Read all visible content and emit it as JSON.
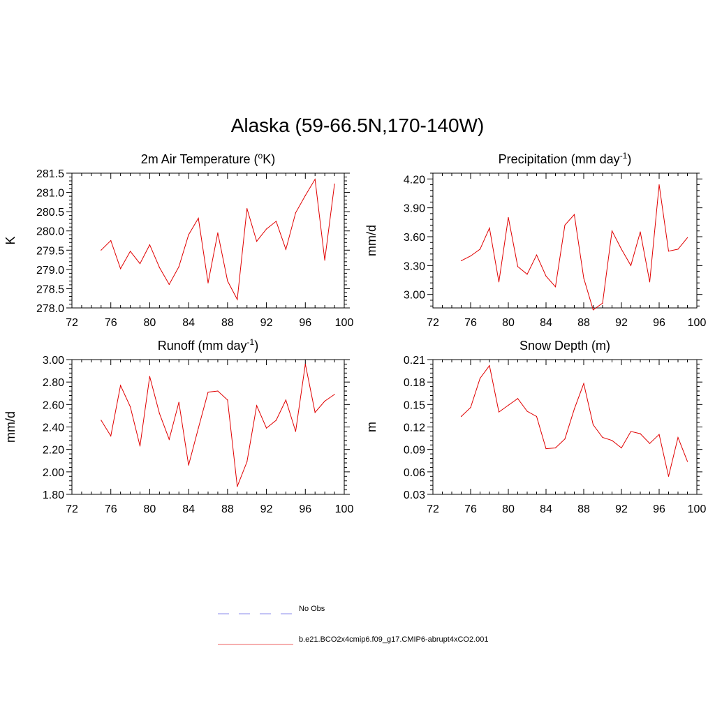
{
  "figure": {
    "title": "Alaska (59-66.5N,170-140W)"
  },
  "legend": {
    "items": [
      {
        "label": "No Obs",
        "color": "#a0a0f0",
        "style": "dashed"
      },
      {
        "label": "b.e21.BCO2x4cmip6.f09_g17.CMIP6-abrupt4xCO2.001",
        "color": "#f08080",
        "style": "solid"
      }
    ]
  },
  "chart_data": [
    {
      "type": "line",
      "title": "2m Air Temperature (",
      "title_sup": "o",
      "title_tail": "K)",
      "ylabel": "K",
      "xlim": [
        72,
        100
      ],
      "ylim": [
        278.0,
        281.5
      ],
      "xticks": [
        72,
        76,
        80,
        84,
        88,
        92,
        96,
        100
      ],
      "yticks": [
        278.0,
        278.5,
        279.0,
        279.5,
        280.0,
        280.5,
        281.0,
        281.5
      ],
      "ytick_decimals": 1,
      "color": "#e00000",
      "x": [
        75,
        76,
        77,
        78,
        79,
        80,
        81,
        82,
        83,
        84,
        85,
        86,
        87,
        88,
        89,
        90,
        91,
        92,
        93,
        94,
        95,
        96,
        97,
        98,
        99
      ],
      "y": [
        279.5,
        279.75,
        279.02,
        279.47,
        279.15,
        279.64,
        279.05,
        278.61,
        279.07,
        279.9,
        280.33,
        278.65,
        279.95,
        278.7,
        278.22,
        280.58,
        279.73,
        280.05,
        280.25,
        279.52,
        280.47,
        280.92,
        281.34,
        279.24,
        281.22
      ]
    },
    {
      "type": "line",
      "title": "Precipitation (mm day",
      "title_sup": "-1",
      "title_tail": ")",
      "ylabel": "mm/d",
      "xlim": [
        72,
        100
      ],
      "ylim": [
        2.86,
        4.26
      ],
      "xticks": [
        72,
        76,
        80,
        84,
        88,
        92,
        96,
        100
      ],
      "yticks": [
        3.0,
        3.3,
        3.6,
        3.9,
        4.2
      ],
      "ytick_decimals": 2,
      "color": "#e00000",
      "x": [
        75,
        76,
        77,
        78,
        79,
        80,
        81,
        82,
        83,
        84,
        85,
        86,
        87,
        88,
        89,
        90,
        91,
        92,
        93,
        94,
        95,
        96,
        97,
        98,
        99
      ],
      "y": [
        3.35,
        3.4,
        3.47,
        3.69,
        3.13,
        3.8,
        3.29,
        3.21,
        3.41,
        3.19,
        3.08,
        3.72,
        3.83,
        3.17,
        2.84,
        2.91,
        3.66,
        3.47,
        3.3,
        3.65,
        3.13,
        4.14,
        3.45,
        3.47,
        3.59
      ]
    },
    {
      "type": "line",
      "title": "Runoff (mm day",
      "title_sup": "-1",
      "title_tail": ")",
      "ylabel": "mm/d",
      "xlim": [
        72,
        100
      ],
      "ylim": [
        1.8,
        3.0
      ],
      "xticks": [
        72,
        76,
        80,
        84,
        88,
        92,
        96,
        100
      ],
      "yticks": [
        1.8,
        2.0,
        2.2,
        2.4,
        2.6,
        2.8,
        3.0
      ],
      "ytick_decimals": 2,
      "color": "#e00000",
      "x": [
        75,
        76,
        77,
        78,
        79,
        80,
        81,
        82,
        83,
        84,
        85,
        86,
        87,
        88,
        89,
        90,
        91,
        92,
        93,
        94,
        95,
        96,
        97,
        98,
        99
      ],
      "y": [
        2.46,
        2.32,
        2.77,
        2.58,
        2.23,
        2.85,
        2.52,
        2.29,
        2.62,
        2.06,
        2.39,
        2.71,
        2.72,
        2.64,
        1.87,
        2.09,
        2.59,
        2.39,
        2.46,
        2.64,
        2.36,
        2.96,
        2.53,
        2.63,
        2.69
      ]
    },
    {
      "type": "line",
      "title": "Snow Depth (m)",
      "title_sup": "",
      "title_tail": "",
      "ylabel": "m",
      "xlim": [
        72,
        100
      ],
      "ylim": [
        0.03,
        0.21
      ],
      "xticks": [
        72,
        76,
        80,
        84,
        88,
        92,
        96,
        100
      ],
      "yticks": [
        0.03,
        0.06,
        0.09,
        0.12,
        0.15,
        0.18,
        0.21
      ],
      "ytick_decimals": 2,
      "color": "#e00000",
      "x": [
        75,
        76,
        77,
        78,
        79,
        80,
        81,
        82,
        83,
        84,
        85,
        86,
        87,
        88,
        89,
        90,
        91,
        92,
        93,
        94,
        95,
        96,
        97,
        98,
        99
      ],
      "y": [
        0.134,
        0.146,
        0.185,
        0.202,
        0.14,
        0.149,
        0.158,
        0.141,
        0.134,
        0.091,
        0.092,
        0.104,
        0.144,
        0.178,
        0.123,
        0.106,
        0.102,
        0.092,
        0.114,
        0.111,
        0.098,
        0.11,
        0.054,
        0.106,
        0.074
      ]
    }
  ]
}
